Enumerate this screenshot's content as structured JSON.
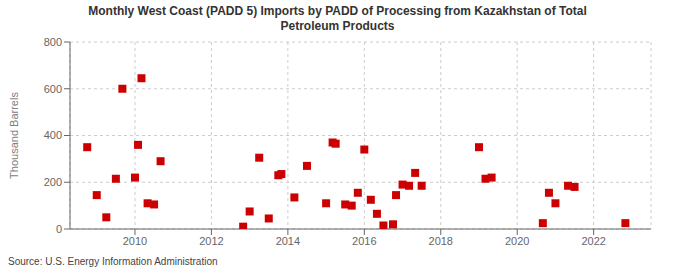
{
  "chart_data": {
    "type": "scatter",
    "title": "Monthly West Coast (PADD 5) Imports by PADD of Processing from Kazakhstan of Total\nPetroleum Products",
    "ylabel": "Thousand Barrels",
    "annotations": [
      "Source: U.S. Energy Information Administration"
    ],
    "x": [
      2008.75,
      2009.0,
      2009.25,
      2009.5,
      2009.67,
      2010.0,
      2010.08,
      2010.17,
      2010.33,
      2010.5,
      2010.67,
      2012.83,
      2013.0,
      2013.25,
      2013.5,
      2013.75,
      2013.83,
      2014.17,
      2014.5,
      2015.0,
      2015.17,
      2015.25,
      2015.5,
      2015.67,
      2015.83,
      2016.0,
      2016.17,
      2016.33,
      2016.5,
      2016.75,
      2016.83,
      2017.0,
      2017.17,
      2017.33,
      2017.5,
      2019.0,
      2019.17,
      2019.33,
      2020.67,
      2020.83,
      2021.0,
      2021.33,
      2021.5,
      2022.83
    ],
    "values": [
      350,
      145,
      50,
      215,
      600,
      220,
      360,
      645,
      110,
      105,
      290,
      10,
      75,
      305,
      45,
      230,
      235,
      135,
      270,
      110,
      370,
      365,
      105,
      100,
      155,
      340,
      125,
      65,
      15,
      20,
      145,
      190,
      185,
      240,
      185,
      350,
      215,
      220,
      25,
      155,
      110,
      185,
      180,
      25
    ],
    "color": "#cc0000",
    "marker": "square",
    "xlim": [
      2008.3,
      2023.5
    ],
    "xticks": [
      2010,
      2012,
      2014,
      2016,
      2018,
      2020,
      2022
    ],
    "ylim": [
      0,
      800
    ],
    "yticks": [
      0,
      200,
      400,
      600,
      800
    ],
    "grid": true
  }
}
